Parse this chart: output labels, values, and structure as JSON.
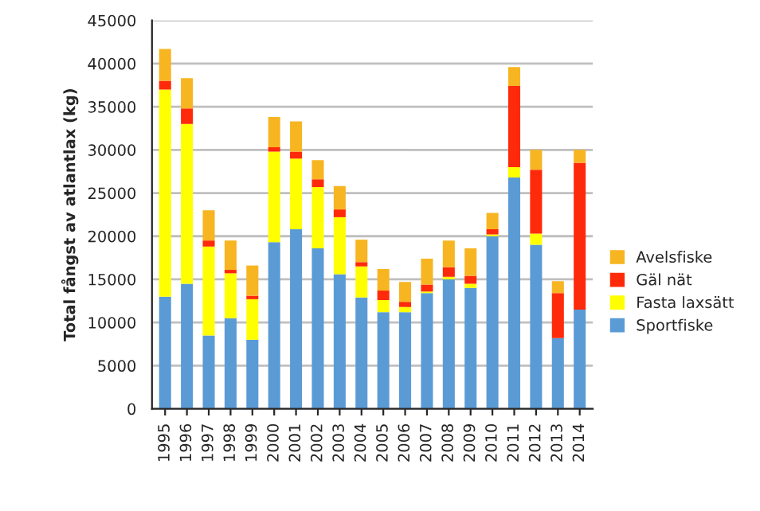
{
  "chart_data": {
    "type": "bar",
    "stacked": true,
    "ylabel": "Total fångst av atlantlax (kg)",
    "categories": [
      "1995",
      "1996",
      "1997",
      "1998",
      "1999",
      "2000",
      "2001",
      "2002",
      "2003",
      "2004",
      "2005",
      "2006",
      "2007",
      "2008",
      "2009",
      "2010",
      "2011",
      "2012",
      "2013",
      "2014"
    ],
    "series": [
      {
        "name": "Sportfiske",
        "color": "#5b9bd5",
        "values": [
          13000,
          14500,
          8500,
          10500,
          8000,
          19300,
          20800,
          18600,
          15600,
          12900,
          11200,
          11200,
          13400,
          15000,
          14000,
          20000,
          26800,
          19000,
          8200,
          11500
        ]
      },
      {
        "name": "Fasta laxsätt",
        "color": "#ffff00",
        "values": [
          24000,
          18500,
          10300,
          5200,
          4700,
          10500,
          8200,
          7100,
          6600,
          3600,
          1400,
          600,
          200,
          300,
          500,
          200,
          1200,
          1300,
          0,
          0
        ]
      },
      {
        "name": "Gäl nät",
        "color": "#ff2a0a",
        "values": [
          1000,
          1800,
          700,
          400,
          400,
          500,
          800,
          900,
          900,
          500,
          1100,
          600,
          800,
          1100,
          900,
          600,
          9400,
          7400,
          5200,
          17000
        ]
      },
      {
        "name": "Avelsfiske",
        "color": "#f7b521",
        "values": [
          3700,
          3500,
          3500,
          3400,
          3500,
          3500,
          3500,
          2200,
          2700,
          2600,
          2500,
          2300,
          3000,
          3100,
          3200,
          1900,
          2200,
          2300,
          1400,
          1500
        ]
      }
    ],
    "ylim": [
      0,
      45000
    ],
    "yticks": [
      0,
      5000,
      10000,
      15000,
      20000,
      25000,
      30000,
      35000,
      40000,
      45000
    ],
    "grid": "y",
    "legend": "right"
  }
}
